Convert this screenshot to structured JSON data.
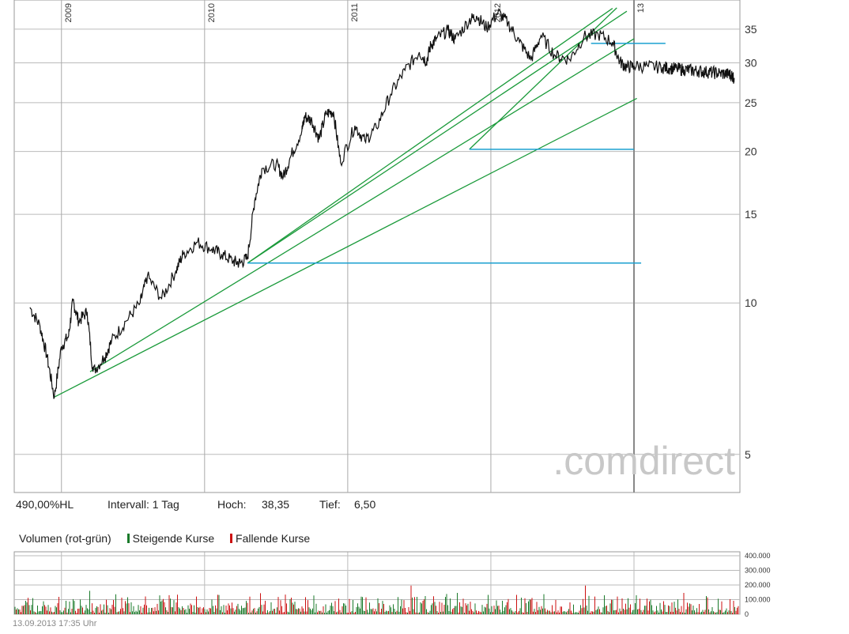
{
  "chart_data": {
    "type": "line",
    "scale": "log",
    "ylim": [
      4.2,
      40
    ],
    "yticks": [
      5,
      10,
      15,
      20,
      25,
      30,
      35
    ],
    "year_labels": [
      "2009",
      "2010",
      "2011",
      "2012",
      "13"
    ],
    "watermark": ".comdirect",
    "price_series": {
      "x": [
        2008.78,
        2008.85,
        2008.9,
        2008.95,
        2009.0,
        2009.05,
        2009.08,
        2009.12,
        2009.18,
        2009.22,
        2009.3,
        2009.35,
        2009.45,
        2009.55,
        2009.6,
        2009.7,
        2009.8,
        2009.85,
        2009.95,
        2010.05,
        2010.12,
        2010.2,
        2010.25,
        2010.3,
        2010.35,
        2010.4,
        2010.5,
        2010.55,
        2010.6,
        2010.68,
        2010.7,
        2010.75,
        2010.8,
        2010.85,
        2010.9,
        2010.95,
        2011.05,
        2011.12,
        2011.2,
        2011.3,
        2011.4,
        2011.5,
        2011.55,
        2011.58,
        2011.62,
        2011.7,
        2011.75,
        2011.85,
        2011.9,
        2011.97,
        2012.05,
        2012.12,
        2012.2,
        2012.28,
        2012.35,
        2012.45,
        2012.55,
        2012.65,
        2012.75,
        2012.85,
        2012.9,
        2012.95,
        2013.0,
        2013.1,
        2013.2,
        2013.25,
        2013.3,
        2013.35,
        2013.4,
        2013.45,
        2013.5,
        2013.55,
        2013.6,
        2013.65,
        2013.68,
        2013.7
      ],
      "values": [
        9.8,
        9.0,
        7.8,
        6.5,
        8.2,
        8.6,
        10.1,
        9.2,
        9.6,
        7.3,
        7.8,
        8.4,
        9.2,
        10.0,
        11.3,
        10.2,
        11.6,
        12.5,
        13.2,
        12.8,
        12.5,
        12.1,
        12.0,
        12.3,
        16.0,
        18.5,
        18.9,
        17.8,
        19.5,
        22.0,
        23.5,
        23.0,
        21.2,
        23.8,
        24.0,
        19.0,
        22.5,
        21.0,
        22.3,
        26.0,
        29.0,
        31.5,
        30.2,
        32.5,
        33.5,
        34.8,
        33.4,
        36.5,
        37.2,
        35.2,
        37.8,
        36.0,
        33.0,
        30.5,
        34.0,
        31.0,
        30.5,
        33.8,
        34.2,
        33.0,
        30.2,
        29.4,
        29.6,
        29.5,
        29.4,
        29.3,
        29.2,
        29.1,
        29.0,
        28.9,
        28.8,
        28.7,
        28.6,
        28.5,
        28.4,
        28.0
      ]
    },
    "trendlines": [
      {
        "x1": 2008.95,
        "y1": 6.5,
        "x2": 2013.02,
        "y2": 25.5
      },
      {
        "x1": 2009.2,
        "y1": 7.3,
        "x2": 2013.0,
        "y2": 33.5
      },
      {
        "x1": 2010.3,
        "y1": 12.0,
        "x2": 2012.95,
        "y2": 38.0
      },
      {
        "x1": 2010.3,
        "y1": 12.0,
        "x2": 2012.85,
        "y2": 38.5
      },
      {
        "x1": 2011.85,
        "y1": 20.2,
        "x2": 2012.88,
        "y2": 38.6
      }
    ],
    "horizontal_lines": [
      {
        "y": 12.0,
        "x1": 2010.3,
        "x2": 2013.05
      },
      {
        "y": 20.2,
        "x1": 2011.85,
        "x2": 2013.0
      },
      {
        "y": 32.8,
        "x1": 2012.7,
        "x2": 2013.22
      }
    ],
    "volume": {
      "yticks": [
        0,
        100000,
        200000,
        300000,
        400000
      ],
      "ytick_labels": [
        "0",
        "100.000",
        "200.000",
        "300.000",
        "400.000"
      ],
      "ylim": [
        0,
        400000
      ],
      "up_color": "#1a7a2a",
      "down_color": "#cc1111"
    }
  },
  "info": {
    "hl": "490,00%HL",
    "interval": "Intervall: 1 Tag",
    "hoch_label": "Hoch:",
    "hoch_value": "38,35",
    "tief_label": "Tief:",
    "tief_value": "6,50"
  },
  "volume_legend": {
    "title": "Volumen (rot-grün)",
    "up": "Steigende Kurse",
    "down": "Fallende Kurse"
  },
  "timestamp": "13.09.2013 17:35 Uhr"
}
